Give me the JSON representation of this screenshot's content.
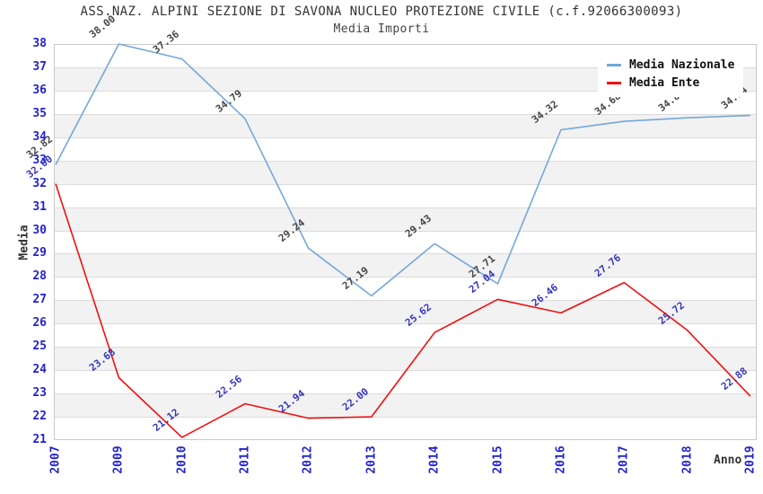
{
  "chart_data": {
    "type": "line",
    "title": "ASS.NAZ. ALPINI SEZIONE DI SAVONA NUCLEO PROTEZIONE CIVILE (c.f.92066300093)",
    "subtitle": "Media Importi",
    "xlabel": "Anno",
    "ylabel": "Media",
    "categories": [
      "2007",
      "2009",
      "2010",
      "2011",
      "2012",
      "2013",
      "2014",
      "2015",
      "2016",
      "2017",
      "2018",
      "2019"
    ],
    "series": [
      {
        "name": "Media Nazionale",
        "color": "#74a7d8",
        "label_color": "#454545",
        "values": [
          32.82,
          38.0,
          37.36,
          34.79,
          29.24,
          27.19,
          29.43,
          27.71,
          34.32,
          34.68,
          34.83,
          34.94
        ]
      },
      {
        "name": "Media Ente",
        "color": "#ee1111",
        "label_color": "#3535bb",
        "values": [
          32.0,
          23.68,
          21.12,
          22.56,
          21.94,
          22.0,
          25.62,
          27.04,
          26.46,
          27.76,
          25.72,
          22.88
        ]
      }
    ],
    "ylim": [
      21,
      38
    ],
    "y_tick_step": 1,
    "grid": "horizontal-bands",
    "band_colors": [
      "#ffffff",
      "#f2f2f2"
    ],
    "gridline_color": "#dcdcdc",
    "tick_color": "#2323cc",
    "legend_position": "top-right"
  }
}
